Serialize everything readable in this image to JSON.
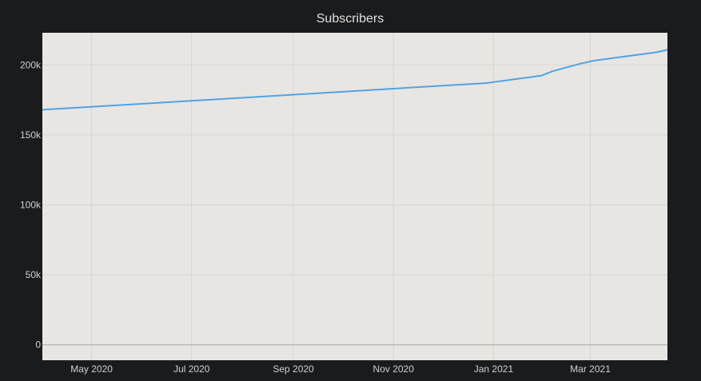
{
  "chart_data": {
    "type": "line",
    "title": "Subscribers",
    "xlabel": "",
    "ylabel": "",
    "xlim": [
      "2020-04-01",
      "2021-04-17"
    ],
    "ylim": [
      -11000,
      223000
    ],
    "grid": true,
    "legend": "none",
    "x_ticks": [
      {
        "date": "2020-05-01",
        "label": "May 2020"
      },
      {
        "date": "2020-07-01",
        "label": "Jul 2020"
      },
      {
        "date": "2020-09-01",
        "label": "Sep 2020"
      },
      {
        "date": "2020-11-01",
        "label": "Nov 2020"
      },
      {
        "date": "2021-01-01",
        "label": "Jan 2021"
      },
      {
        "date": "2021-03-01",
        "label": "Mar 2021"
      }
    ],
    "y_ticks": [
      {
        "value": 0,
        "label": "0"
      },
      {
        "value": 50000,
        "label": "50k"
      },
      {
        "value": 100000,
        "label": "100k"
      },
      {
        "value": 150000,
        "label": "150k"
      },
      {
        "value": 200000,
        "label": "200k"
      }
    ],
    "series": [
      {
        "x": [
          "2020-04-01",
          "2020-12-27",
          "2021-01-30",
          "2021-02-06",
          "2021-02-22",
          "2021-03-03",
          "2021-04-10",
          "2021-04-17"
        ],
        "y": [
          168000,
          187000,
          192300,
          195500,
          200600,
          203000,
          209000,
          210800
        ]
      }
    ],
    "colors": {
      "background": "#1a1b1d",
      "plot": "#e8e6e2",
      "grid": "#d7d5d1",
      "line": "#4ea4e4",
      "text": "#d0d0d0"
    }
  }
}
